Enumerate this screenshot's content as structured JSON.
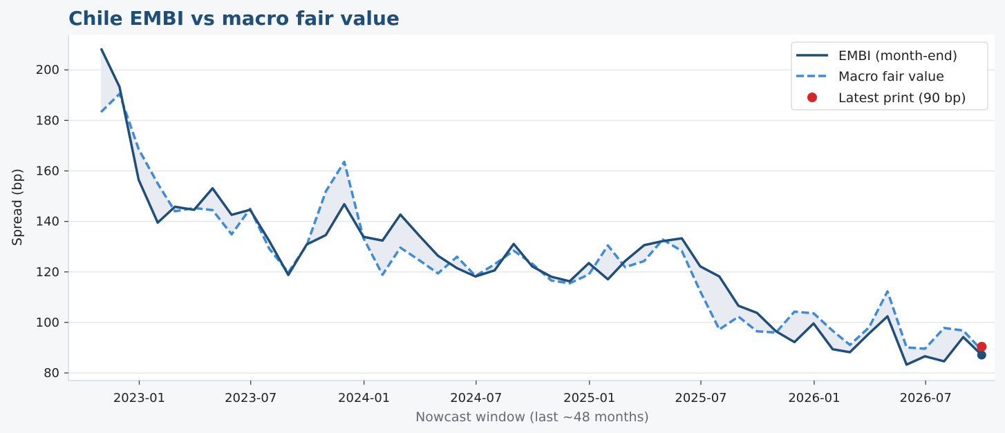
{
  "chart_data": {
    "type": "line",
    "title": "Chile EMBI vs macro fair value",
    "xlabel": "Nowcast window (last ~48 months)",
    "ylabel": "Spread (bp)",
    "ylim": [
      77,
      214
    ],
    "xlim": [
      "2022-09-08",
      "2026-10-21"
    ],
    "yticks": [
      80,
      100,
      120,
      140,
      160,
      180,
      200
    ],
    "xticks": [
      "2023-01",
      "2023-07",
      "2024-01",
      "2024-07",
      "2025-01",
      "2025-07",
      "2026-01",
      "2026-07"
    ],
    "grid": "y",
    "legend_position": "top-right",
    "x": [
      "2022-10-31",
      "2022-11-30",
      "2022-12-31",
      "2023-01-31",
      "2023-02-28",
      "2023-03-31",
      "2023-04-30",
      "2023-05-31",
      "2023-06-30",
      "2023-07-31",
      "2023-08-31",
      "2023-09-30",
      "2023-10-31",
      "2023-11-30",
      "2023-12-31",
      "2024-01-31",
      "2024-02-29",
      "2024-03-31",
      "2024-04-30",
      "2024-05-31",
      "2024-06-30",
      "2024-07-31",
      "2024-08-31",
      "2024-09-30",
      "2024-10-31",
      "2024-11-30",
      "2024-12-31",
      "2025-01-31",
      "2025-02-28",
      "2025-03-31",
      "2025-04-30",
      "2025-05-31",
      "2025-06-30",
      "2025-07-31",
      "2025-08-31",
      "2025-09-30",
      "2025-10-31",
      "2025-11-30",
      "2025-12-31",
      "2026-01-31",
      "2026-02-28",
      "2026-03-31",
      "2026-04-30",
      "2026-05-31",
      "2026-06-30",
      "2026-07-31",
      "2026-08-31"
    ],
    "series": [
      {
        "name": "EMBI (month-end)",
        "color": "#1f4e79",
        "style": "solid",
        "values": [
          208.5,
          193.3,
          156.5,
          139.5,
          145.8,
          144.6,
          153.1,
          142.6,
          144.6,
          132.3,
          118.8,
          130.9,
          134.6,
          146.8,
          133.9,
          132.4,
          142.7,
          134.3,
          126.4,
          121.5,
          118.2,
          120.6,
          131.1,
          122.2,
          118.1,
          116.3,
          123.5,
          117.1,
          124.3,
          130.6,
          132.2,
          133.3,
          122.2,
          118.2,
          106.6,
          103.8,
          96.5,
          92.2,
          99.6,
          89.4,
          88.2,
          95.6,
          102.4,
          83.3,
          86.6,
          84.6,
          94.2
        ]
      },
      {
        "name": "Macro fair value",
        "color": "#3d8bd9",
        "style": "dashed",
        "values": [
          183.3,
          190.5,
          168.6,
          155.0,
          144.0,
          145.3,
          144.5,
          134.9,
          145.0,
          129.2,
          119.8,
          130.6,
          151.9,
          163.6,
          133.4,
          118.9,
          129.6,
          124.6,
          119.4,
          126.0,
          118.4,
          123.0,
          128.4,
          123.3,
          116.6,
          115.5,
          119.0,
          130.5,
          121.9,
          124.3,
          132.8,
          128.3,
          112.3,
          97.2,
          102.3,
          96.5,
          96.0,
          104.3,
          103.6,
          96.7,
          91.1,
          98.0,
          112.3,
          90.1,
          89.6,
          97.8,
          96.8
        ]
      }
    ],
    "latest": {
      "label": "Latest print (90 bp)",
      "date": "2026-09-30",
      "value": 90.4,
      "embi_value": 87.1,
      "fair_value": 89.0,
      "color": "#d62728"
    },
    "band_fill_color": "#e8ebf1"
  }
}
